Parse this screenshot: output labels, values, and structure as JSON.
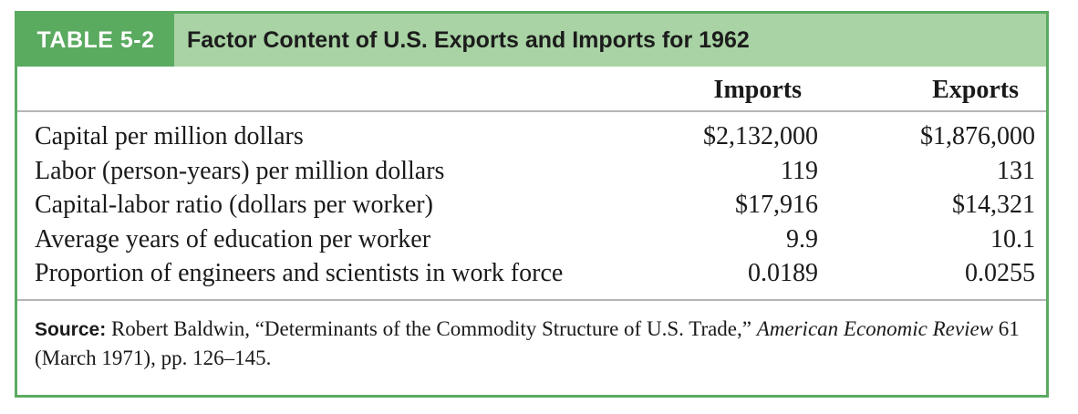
{
  "table": {
    "number": "TABLE 5-2",
    "title": "Factor Content of U.S. Exports and Imports for 1962",
    "columns": [
      "Imports",
      "Exports"
    ],
    "rows": [
      {
        "label": "Capital per million dollars",
        "imports": "$2,132,000",
        "exports": "$1,876,000"
      },
      {
        "label": "Labor (person-years) per million dollars",
        "imports": "119",
        "exports": "131"
      },
      {
        "label": "Capital-labor ratio (dollars per worker)",
        "imports": "$17,916",
        "exports": "$14,321"
      },
      {
        "label": "Average years of education per worker",
        "imports": "9.9",
        "exports": "10.1"
      },
      {
        "label": "Proportion of engineers and scientists in work force",
        "imports": "0.0189",
        "exports": "0.0255"
      }
    ],
    "source": {
      "label": "Source:",
      "text_before": "Robert Baldwin, “Determinants of the Commodity Structure of U.S. Trade,”",
      "journal": "American Economic Review",
      "text_after": "61 (March 1971), pp. 126–145."
    }
  },
  "colors": {
    "accent": "#5aaa60",
    "header_band": "#a9d3a4"
  }
}
